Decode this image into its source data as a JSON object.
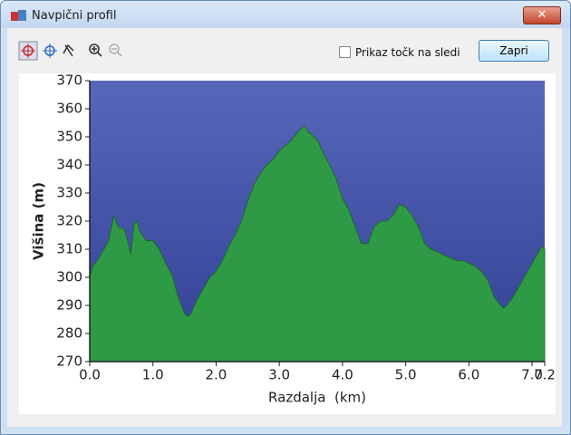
{
  "window": {
    "title": "Navpični profil",
    "checkbox_label": "Prikaz točk na sledi",
    "button_label": "Zapri"
  },
  "chart_data": {
    "type": "area",
    "x_label": "Razdalja  (km)",
    "y_label": "Višina (m)",
    "x": [
      0.0,
      0.05,
      0.15,
      0.3,
      0.38,
      0.45,
      0.55,
      0.6,
      0.65,
      0.7,
      0.75,
      0.8,
      0.9,
      1.0,
      1.1,
      1.2,
      1.3,
      1.4,
      1.5,
      1.55,
      1.6,
      1.7,
      1.8,
      1.9,
      2.0,
      2.1,
      2.2,
      2.3,
      2.4,
      2.5,
      2.6,
      2.7,
      2.8,
      2.9,
      3.0,
      3.1,
      3.2,
      3.3,
      3.4,
      3.45,
      3.5,
      3.6,
      3.7,
      3.8,
      3.9,
      4.0,
      4.1,
      4.2,
      4.3,
      4.4,
      4.5,
      4.6,
      4.7,
      4.8,
      4.9,
      5.0,
      5.1,
      5.2,
      5.3,
      5.4,
      5.5,
      5.6,
      5.7,
      5.8,
      5.9,
      6.0,
      6.1,
      6.2,
      6.3,
      6.4,
      6.5,
      6.55,
      6.6,
      6.7,
      6.8,
      6.9,
      7.0,
      7.1,
      7.15,
      7.2
    ],
    "series": [
      {
        "color": "#2f9a46",
        "values": [
          300,
          304,
          307,
          313,
          322,
          318,
          317,
          313,
          308,
          319,
          320,
          316,
          313,
          313,
          310,
          305,
          301,
          293,
          287,
          286,
          287,
          292,
          296,
          300,
          302,
          306,
          311,
          315,
          320,
          327,
          333,
          337,
          340,
          342,
          345,
          347,
          349,
          352,
          354,
          352,
          351,
          349,
          344,
          340,
          335,
          328,
          324,
          318,
          312,
          312,
          318,
          320,
          320,
          322,
          326,
          325,
          322,
          318,
          312,
          310,
          309,
          308,
          307,
          306,
          306,
          305,
          304,
          302,
          299,
          293,
          290,
          289,
          290,
          293,
          297,
          301,
          305,
          309,
          311,
          310
        ]
      }
    ],
    "background": "#3a4cae",
    "xlim": [
      0,
      7.2
    ],
    "ylim": [
      270,
      370
    ],
    "xticks": [
      {
        "value": 0,
        "label": "0.0"
      },
      {
        "value": 1,
        "label": "1.0"
      },
      {
        "value": 2,
        "label": "2.0"
      },
      {
        "value": 3,
        "label": "3.0"
      },
      {
        "value": 4,
        "label": "4.0"
      },
      {
        "value": 5,
        "label": "5.0"
      },
      {
        "value": 6,
        "label": "6.0"
      },
      {
        "value": 7,
        "label": "7.0"
      },
      {
        "value": 7.2,
        "label": "7.2"
      }
    ],
    "yticks": [
      270,
      280,
      290,
      300,
      310,
      320,
      330,
      340,
      350,
      360,
      370
    ]
  }
}
